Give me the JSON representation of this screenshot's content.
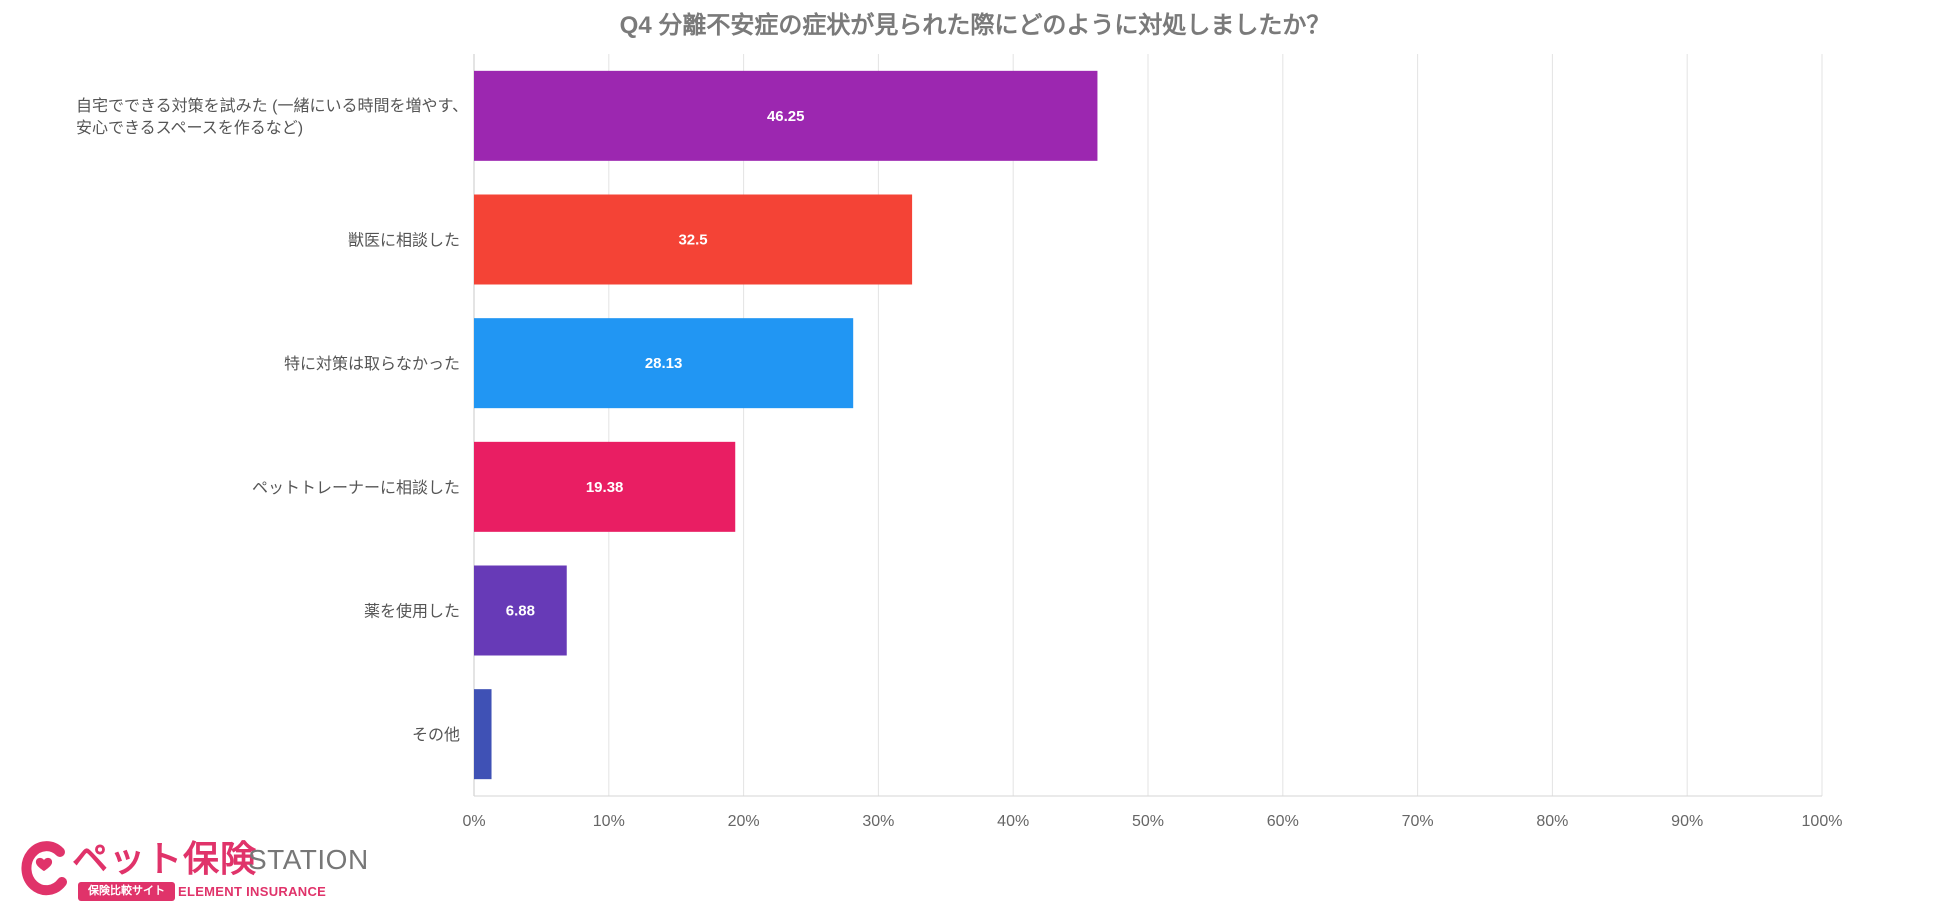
{
  "chart_data": {
    "type": "bar",
    "orientation": "horizontal",
    "title": "Q4 分離不安症の症状が見られた際にどのように対処しましたか？",
    "categories": [
      "自宅でできる対策を試みた (一緒にいる時間を増やす、安心できるスペースを作るなど)",
      "獣医に相談した",
      "特に対策は取らなかった",
      "ペットトレーナーに相談した",
      "薬を使用した",
      "その他"
    ],
    "category_lines": [
      [
        "自宅でできる対策を試みた (一緒にいる時間を増やす、",
        "安心できるスペースを作るなど)"
      ],
      [
        "獣医に相談した"
      ],
      [
        "特に対策は取らなかった"
      ],
      [
        "ペットトレーナーに相談した"
      ],
      [
        "薬を使用した"
      ],
      [
        "その他"
      ]
    ],
    "values": [
      46.25,
      32.5,
      28.13,
      19.38,
      6.88,
      1.3
    ],
    "data_labels": [
      "46.25",
      "32.5",
      "28.13",
      "19.38",
      "6.88",
      ""
    ],
    "colors": [
      "#9c27b0",
      "#f44336",
      "#2196f3",
      "#e91e63",
      "#673ab7",
      "#3f51b5"
    ],
    "xlim": [
      0,
      100
    ],
    "x_ticks": [
      "0%",
      "10%",
      "20%",
      "30%",
      "40%",
      "50%",
      "60%",
      "70%",
      "80%",
      "90%",
      "100%"
    ],
    "grid": true,
    "xlabel": "",
    "ylabel": ""
  },
  "logo": {
    "name": "ペット保険",
    "station": "STATION",
    "badge": "保険比較サイト",
    "sub": "ELEMENT INSURANCE",
    "brand_color": "#e0336a"
  }
}
